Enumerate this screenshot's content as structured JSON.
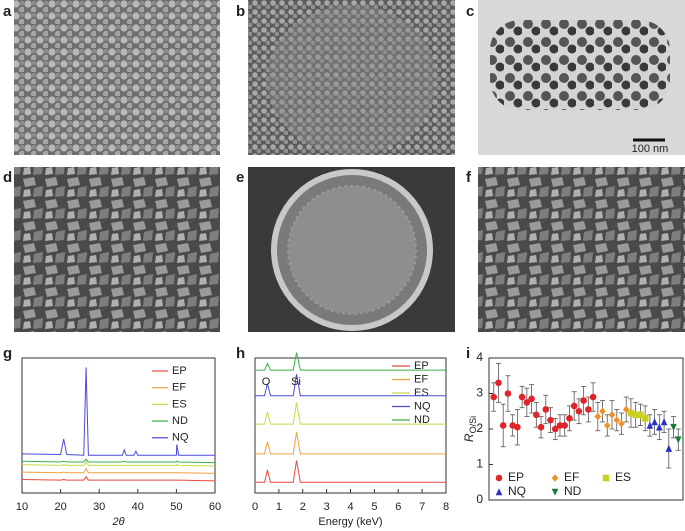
{
  "panel_labels": [
    "a",
    "b",
    "c",
    "d",
    "e",
    "f",
    "g",
    "h",
    "i"
  ],
  "scale_bar": "100 nm",
  "chart_data": [
    {
      "type": "line",
      "x_label": "2θ",
      "x": [
        10,
        20,
        20.8,
        21.6,
        26,
        26.6,
        27.2,
        36,
        36.5,
        37,
        39,
        39.5,
        40,
        50,
        50.1,
        50.6,
        60
      ],
      "xlim": [
        10,
        60
      ],
      "xticks": [
        10,
        20,
        30,
        40,
        50,
        60
      ],
      "ylim": [
        0,
        100
      ],
      "series": [
        {
          "name": "EP",
          "color": "#e8483f",
          "values": [
            10,
            9.5,
            10,
            9.5,
            9.5,
            12,
            9.5,
            9.5,
            9.5,
            9.5,
            9.5,
            9.5,
            9.5,
            9.5,
            9.5,
            9.5,
            9
          ]
        },
        {
          "name": "EF",
          "color": "#f0a040",
          "values": [
            15.5,
            15,
            15.5,
            15,
            15,
            18,
            15,
            15,
            15,
            15,
            15,
            15,
            15,
            15,
            15,
            15,
            14.5
          ]
        },
        {
          "name": "ES",
          "color": "#c8d848",
          "values": [
            21,
            20.5,
            21,
            20.5,
            20.5,
            23,
            20.5,
            20.5,
            20.5,
            20.5,
            20.5,
            20.5,
            20.5,
            20.5,
            21,
            20.5,
            20
          ]
        },
        {
          "name": "ND",
          "color": "#38b04a",
          "values": [
            23.5,
            23,
            23.5,
            23,
            23,
            25,
            23,
            23,
            23.5,
            23,
            23,
            23,
            23,
            23,
            23.5,
            23,
            22.5
          ]
        },
        {
          "name": "NQ",
          "color": "#4a4ad8",
          "values": [
            29,
            28.5,
            40,
            28.5,
            28,
            93,
            28,
            28,
            32,
            28,
            28,
            31,
            28,
            28,
            36,
            28,
            28
          ]
        }
      ]
    },
    {
      "type": "line",
      "x_label": "Energy (keV)",
      "annotations": [
        "O",
        "Si"
      ],
      "x": [
        0,
        0.4,
        0.52,
        0.65,
        1.6,
        1.74,
        1.9,
        8
      ],
      "xlim": [
        0,
        8
      ],
      "xticks": [
        0,
        1,
        2,
        3,
        4,
        5,
        6,
        7,
        8
      ],
      "ylim": [
        0,
        100
      ],
      "series": [
        {
          "name": "EP",
          "color": "#e8483f",
          "values": [
            8,
            8,
            17,
            8,
            8,
            24,
            8,
            8
          ]
        },
        {
          "name": "EF",
          "color": "#f0a040",
          "values": [
            29,
            29,
            38,
            29,
            29,
            45,
            29,
            29
          ]
        },
        {
          "name": "ES",
          "color": "#c8d848",
          "values": [
            51,
            51,
            60,
            51,
            51,
            67,
            51,
            51
          ]
        },
        {
          "name": "NQ",
          "color": "#4a4ad8",
          "values": [
            72,
            72,
            81,
            72,
            72,
            88,
            72,
            72
          ]
        },
        {
          "name": "ND",
          "color": "#38b04a",
          "values": [
            91,
            91,
            96,
            91,
            91,
            104,
            91,
            91
          ]
        }
      ]
    },
    {
      "type": "scatter",
      "y_label": "R",
      "y_label_sub": "O/Si",
      "xlim": [
        0,
        41
      ],
      "ylim": [
        0,
        4
      ],
      "yticks": [
        0,
        1,
        2,
        3,
        4
      ],
      "series": [
        {
          "name": "EP",
          "color": "#e0242a",
          "marker": "circle",
          "x": [
            1,
            2,
            3,
            4,
            5,
            6,
            7,
            8,
            9,
            10,
            11,
            12,
            13,
            14,
            15,
            16,
            17,
            18,
            19,
            20,
            21,
            22
          ],
          "values": [
            2.9,
            3.3,
            2.1,
            3.0,
            2.1,
            2.05,
            2.9,
            2.75,
            2.85,
            2.4,
            2.05,
            2.55,
            2.25,
            2.0,
            2.1,
            2.1,
            2.3,
            2.65,
            2.5,
            2.8,
            2.55,
            2.9
          ],
          "errors": [
            0.4,
            0.55,
            0.6,
            0.5,
            0.3,
            0.5,
            0.3,
            0.4,
            0.4,
            0.35,
            0.3,
            0.4,
            0.35,
            0.3,
            0.3,
            0.3,
            0.35,
            0.4,
            0.35,
            0.4,
            0.35,
            0.4
          ]
        },
        {
          "name": "EF",
          "color": "#f0902a",
          "marker": "diamond",
          "x": [
            23,
            24,
            25,
            26,
            27,
            28,
            29
          ],
          "values": [
            2.35,
            2.5,
            2.1,
            2.4,
            2.25,
            2.15,
            2.55
          ],
          "errors": [
            0.4,
            0.3,
            0.3,
            0.4,
            0.3,
            0.3,
            0.35
          ]
        },
        {
          "name": "ES",
          "color": "#c8d020",
          "marker": "square",
          "x": [
            30,
            31,
            32,
            33
          ],
          "values": [
            2.45,
            2.4,
            2.4,
            2.3
          ],
          "errors": [
            0.4,
            0.35,
            0.3,
            0.35
          ]
        },
        {
          "name": "NQ",
          "color": "#2a30c8",
          "marker": "triangle-up",
          "x": [
            34,
            35,
            36,
            37,
            38
          ],
          "values": [
            2.1,
            2.2,
            2.05,
            2.2,
            1.45
          ],
          "errors": [
            0.3,
            0.35,
            0.35,
            0.3,
            0.55
          ]
        },
        {
          "name": "ND",
          "color": "#1a7a3a",
          "marker": "triangle-down",
          "x": [
            39,
            40
          ],
          "values": [
            2.05,
            1.7
          ],
          "errors": [
            0.3,
            0.3
          ]
        }
      ]
    }
  ]
}
